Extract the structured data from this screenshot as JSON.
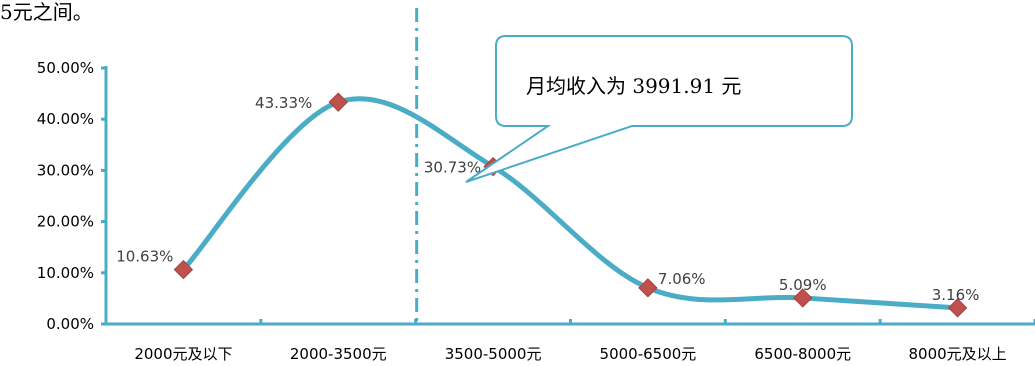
{
  "header": {
    "text": "5元之间。"
  },
  "chart_data": {
    "type": "line",
    "categories": [
      "2000元及以下",
      "2000-3500元",
      "3500-5000元",
      "5000-6500元",
      "6500-8000元",
      "8000元及以上"
    ],
    "values": [
      10.63,
      43.33,
      30.73,
      7.06,
      5.09,
      3.16
    ],
    "data_labels": [
      "10.63%",
      "43.33%",
      "30.73%",
      "7.06%",
      "5.09%",
      "3.16%"
    ],
    "y_ticks": [
      "0.00%",
      "10.00%",
      "20.00%",
      "30.00%",
      "40.00%",
      "50.00%"
    ],
    "ylim": [
      0,
      50
    ],
    "smooth": true,
    "marker": "diamond",
    "line_color": "#4bacc6",
    "marker_color": "#c0504d",
    "axis_color": "#4bacc6",
    "reference_line": {
      "value": 3991.91,
      "style": "dash-dot"
    },
    "annotation": "月均收入为 3991.91 元",
    "grid": false
  }
}
